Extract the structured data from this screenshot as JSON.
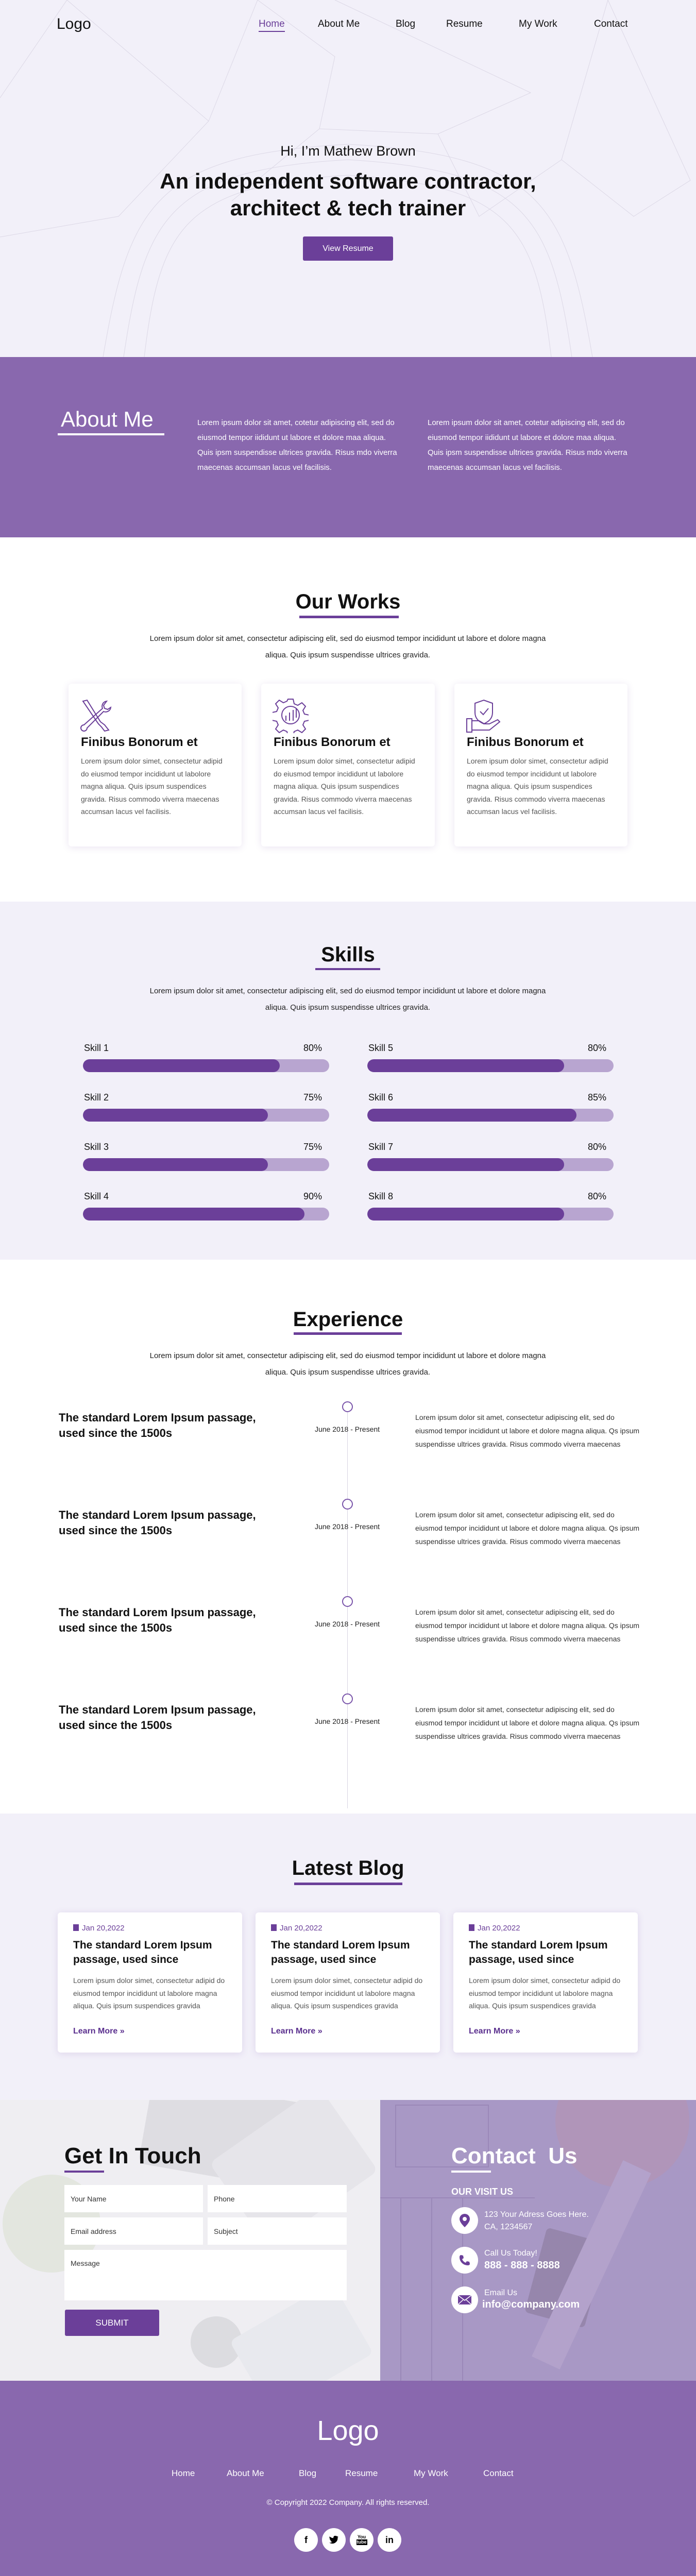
{
  "colors": {
    "accent": "#6b3f99",
    "purple_section": "#8968ae",
    "light_bg": "#f2f0f9",
    "skill_track": "#b8a5d0"
  },
  "nav": {
    "logo": "Logo",
    "items": [
      {
        "label": "Home",
        "active": true
      },
      {
        "label": "About Me"
      },
      {
        "label": "Blog"
      },
      {
        "label": "Resume"
      },
      {
        "label": "My Work"
      },
      {
        "label": "Contact"
      }
    ]
  },
  "hero": {
    "greeting": "Hi, I’m Mathew Brown",
    "headline_1": "An independent software contractor,",
    "headline_2": "architect & tech trainer",
    "button": "View Resume"
  },
  "about": {
    "title": "About Me",
    "col1": "Lorem ipsum dolor sit amet, cotetur adipiscing elit, sed do eiusmod tempor iididunt ut labore et dolore maa aliqua. Quis ipsm suspendisse ultrices gravida. Risus mdo viverra maecenas accumsan lacus vel facilisis.",
    "col2": "Lorem ipsum dolor sit amet, cotetur adipiscing elit, sed do eiusmod tempor iididunt ut labore et dolore maa aliqua. Quis ipsm suspendisse ultrices gravida. Risus mdo viverra maecenas accumsan lacus vel facilisis."
  },
  "works": {
    "title": "Our Works",
    "intro": "Lorem ipsum dolor sit amet, consectetur adipiscing elit, sed do eiusmod tempor incididunt ut labore et dolore magna aliqua. Quis ipsum suspendisse ultrices gravida.",
    "cards": [
      {
        "icon": "tools-icon",
        "title": "Finibus Bonorum et",
        "text": "Lorem ipsum dolor simet, consectetur adipid do eiusmod tempor incididunt ut labolore magna aliqua. Quis ipsum suspendices gravida. Risus commodo viverra maecenas accumsan lacus vel facilisis."
      },
      {
        "icon": "gear-growth-icon",
        "title": "Finibus Bonorum et",
        "text": "Lorem ipsum dolor simet, consectetur adipid do eiusmod tempor incididunt ut labolore magna aliqua. Quis ipsum suspendices gravida. Risus commodo viverra maecenas accumsan lacus vel facilisis."
      },
      {
        "icon": "shield-hand-icon",
        "title": "Finibus Bonorum et",
        "text": "Lorem ipsum dolor simet, consectetur adipid do eiusmod tempor incididunt ut labolore magna aliqua. Quis ipsum suspendices gravida. Risus commodo viverra maecenas accumsan lacus vel facilisis."
      }
    ]
  },
  "skills": {
    "title": "Skills",
    "intro": "Lorem ipsum dolor sit amet, consectetur adipiscing elit, sed do eiusmod tempor incididunt ut labore et dolore magna aliqua. Quis ipsum suspendisse ultrices gravida.",
    "items": [
      {
        "label": "Skill 1",
        "percent": 80,
        "text": "80%"
      },
      {
        "label": "Skill 2",
        "percent": 75,
        "text": "75%"
      },
      {
        "label": "Skill 3",
        "percent": 75,
        "text": "75%"
      },
      {
        "label": "Skill 4",
        "percent": 90,
        "text": "90%"
      },
      {
        "label": "Skill 5",
        "percent": 80,
        "text": "80%"
      },
      {
        "label": "Skill 6",
        "percent": 85,
        "text": "85%"
      },
      {
        "label": "Skill 7",
        "percent": 80,
        "text": "80%"
      },
      {
        "label": "Skill 8",
        "percent": 80,
        "text": "80%"
      }
    ]
  },
  "experience": {
    "title": "Experience",
    "intro": "Lorem ipsum dolor sit amet, consectetur adipiscing elit, sed do eiusmod tempor incididunt ut labore et dolore magna aliqua. Quis ipsum suspendisse ultrices gravida.",
    "items": [
      {
        "title": "The standard Lorem Ipsum passage, used since the 1500s",
        "date": "June 2018 - Present",
        "text": "Lorem ipsum dolor sit amet, consectetur adipiscing elit, sed do eiusmod tempor incididunt ut labore et dolore magna aliqua. Qs ipsum suspendisse ultrices gravida. Risus commodo viverra maecenas"
      },
      {
        "title": "The standard Lorem Ipsum passage, used since the 1500s",
        "date": "June 2018 - Present",
        "text": "Lorem ipsum dolor sit amet, consectetur adipiscing elit, sed do eiusmod tempor incididunt ut labore et dolore magna aliqua. Qs ipsum suspendisse ultrices gravida. Risus commodo viverra maecenas"
      },
      {
        "title": "The standard Lorem Ipsum passage, used since the 1500s",
        "date": "June 2018 - Present",
        "text": "Lorem ipsum dolor sit amet, consectetur adipiscing elit, sed do eiusmod tempor incididunt ut labore et dolore magna aliqua. Qs ipsum suspendisse ultrices gravida. Risus commodo viverra maecenas"
      },
      {
        "title": "The standard Lorem Ipsum passage, used since the 1500s",
        "date": "June 2018 - Present",
        "text": "Lorem ipsum dolor sit amet, consectetur adipiscing elit, sed do eiusmod tempor incididunt ut labore et dolore magna aliqua. Qs ipsum suspendisse ultrices gravida. Risus commodo viverra maecenas"
      }
    ]
  },
  "blog": {
    "title": "Latest Blog",
    "posts": [
      {
        "date": "Jan 20,2022",
        "title": "The standard Lorem Ipsum passage, used since",
        "text": "Lorem ipsum dolor simet, consectetur adipid do eiusmod tempor incididunt ut labolore magna aliqua. Quis ipsum suspendices gravida",
        "link": "Learn More »"
      },
      {
        "date": "Jan 20,2022",
        "title": "The standard Lorem Ipsum passage, used since",
        "text": "Lorem ipsum dolor simet, consectetur adipid do eiusmod tempor incididunt ut labolore magna aliqua. Quis ipsum suspendices gravida",
        "link": "Learn More »"
      },
      {
        "date": "Jan 20,2022",
        "title": "The standard Lorem Ipsum passage, used since",
        "text": "Lorem ipsum dolor simet, consectetur adipid do eiusmod tempor incididunt ut labolore magna aliqua. Quis ipsum suspendices gravida",
        "link": "Learn More »"
      }
    ]
  },
  "contact_form": {
    "title": "Get In Touch",
    "name_placeholder": "Your Name",
    "phone_placeholder": "Phone",
    "email_placeholder": "Email address",
    "subject_placeholder": "Subject",
    "message_placeholder": "Message",
    "submit": "SUBMIT"
  },
  "contact_info": {
    "title": "Contact  Us",
    "subtitle": "OUR VISIT US",
    "address_1": "123 Your Adress Goes Here.",
    "address_2": "CA, 1234567",
    "call_label": "Call Us Today!",
    "phone": "888 - 888 - 8888",
    "email_label": "Email Us",
    "email": "info@company.com"
  },
  "footer": {
    "logo": "Logo",
    "nav": [
      "Home",
      "About Me",
      "Blog",
      "Resume",
      "My Work",
      "Contact"
    ],
    "copyright": "© Copyright 2022 Company. All rights reserved.",
    "social": [
      "facebook-icon",
      "twitter-icon",
      "youtube-icon",
      "linkedin-icon"
    ]
  }
}
